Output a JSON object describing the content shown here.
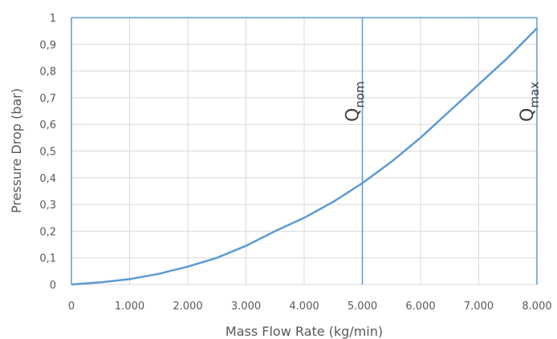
{
  "chart_data": {
    "type": "line",
    "xlabel": "Mass Flow Rate (kg/min)",
    "ylabel": "Pressure Drop  (bar)",
    "xlim": [
      0,
      8000
    ],
    "ylim": [
      0,
      1
    ],
    "x_ticks": [
      "0",
      "1.000",
      "2.000",
      "3.000",
      "4.000",
      "5.000",
      "6.000",
      "7.000",
      "8.000"
    ],
    "y_ticks": [
      "0",
      "0,1",
      "0,2",
      "0,3",
      "0,4",
      "0,5",
      "0,6",
      "0,7",
      "0,8",
      "0,9",
      "1"
    ],
    "grid": true,
    "series": [
      {
        "color": "#5b9bd5",
        "x": [
          0,
          500,
          1000,
          1500,
          2000,
          2500,
          3000,
          3500,
          4000,
          4500,
          5000,
          5500,
          6000,
          6500,
          7000,
          7500,
          8000
        ],
        "y": [
          0,
          0.008,
          0.02,
          0.04,
          0.067,
          0.1,
          0.145,
          0.2,
          0.25,
          0.31,
          0.38,
          0.46,
          0.55,
          0.65,
          0.75,
          0.85,
          0.96
        ]
      }
    ],
    "markers": [
      {
        "x": 5000,
        "label": "Q",
        "sub": "nom"
      },
      {
        "x": 8000,
        "label": "Q",
        "sub": "max"
      }
    ],
    "line_color": "#5b9bd5",
    "grid_color": "#d9d9d9"
  }
}
